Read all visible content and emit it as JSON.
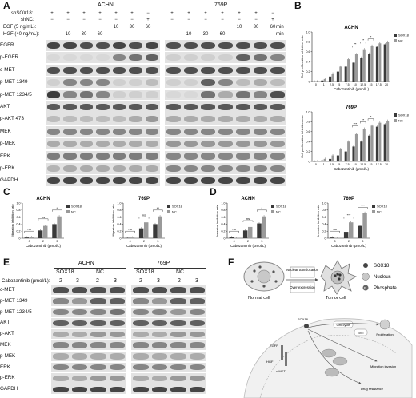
{
  "panelA": {
    "letter": "A",
    "cell_lines": [
      "ACHN",
      "769P"
    ],
    "treatments": [
      "shSOX18:",
      "shNC:",
      "EGF (5 ng/mL):",
      "HGF (40 ng/mL):"
    ],
    "unit": "min",
    "sign_plus": "+",
    "sign_minus": "−",
    "egf_times": [
      "10",
      "30",
      "60"
    ],
    "hgf_times": [
      "10",
      "30",
      "60"
    ],
    "rows": [
      "EGFR",
      "p-EGFR",
      "c-MET",
      "p-MET 1349",
      "p-MET 1234/5",
      "AKT",
      "p-AKT 473",
      "MEK",
      "p-MEK",
      "ERK",
      "p-ERK",
      "GAPDH"
    ]
  },
  "panelB": {
    "letter": "B",
    "ylabel": "Cell proliferation inhibition rate",
    "xlabel": "Cabozantinib (μmol/L)",
    "sig1": "**",
    "sig2": "*",
    "sig3": "***"
  },
  "panelC": {
    "letter": "C",
    "ylabel": "Migration inhibition rate",
    "xlabel": "Cabozantinib (μmol/L)",
    "ns": "ns",
    "sig1": "*",
    "sig2": "**"
  },
  "panelD": {
    "letter": "D",
    "ylabel": "Invasion inhibition rate",
    "xlabel": "Cabozantinib (μmol/L)",
    "ns": "ns",
    "sig1": "*",
    "sig2": "**",
    "sig3": "***"
  },
  "panelE": {
    "letter": "E",
    "cell_lines": [
      "ACHN",
      "769P"
    ],
    "groups": [
      "SOX18",
      "NC"
    ],
    "dose_label": "Cabozantinib (μmol/L):",
    "doses": [
      "2",
      "3"
    ],
    "rows": [
      "c-MET",
      "p-MET 1349",
      "p-MET 1234/5",
      "AKT",
      "p-AKT",
      "MEK",
      "p-MEK",
      "ERK",
      "p-ERK",
      "GAPDH"
    ]
  },
  "panelF": {
    "letter": "F",
    "normal": "Normal cell",
    "tumor": "Tumor cell",
    "arrow1": "Nuclear translocation",
    "arrow2": "Over-expression",
    "legend": [
      "SOX18",
      "Nucleus",
      "Phosphate"
    ],
    "legend_p": "P",
    "labels": [
      "Cell cycle",
      "EMT",
      "Proliferation",
      "Migration invasion",
      "Drug resistance",
      "SOX18",
      "EGFR",
      "HGF",
      "c-MET"
    ]
  },
  "chart_data": [
    {
      "type": "bar",
      "title": "ACHN",
      "xlabel": "Cabozantinib (μmol/L)",
      "ylabel": "Cell proliferation inhibition rate",
      "categories": [
        "0",
        "1",
        "2.5",
        "5",
        "7.5",
        "10",
        "12.5",
        "15",
        "17.5",
        "20"
      ],
      "ylim": [
        0,
        1.0
      ],
      "yticks": [
        "0",
        "0.2",
        "0.4",
        "0.6",
        "0.8",
        "1.0"
      ],
      "series": [
        {
          "name": "SOX18",
          "values": [
            0,
            0.02,
            0.1,
            0.2,
            0.3,
            0.38,
            0.48,
            0.56,
            0.7,
            0.75
          ],
          "color": "#3a3a3a"
        },
        {
          "name": "NC",
          "values": [
            0,
            0.05,
            0.16,
            0.3,
            0.45,
            0.55,
            0.65,
            0.72,
            0.77,
            0.8
          ],
          "color": "#9a9a9a"
        }
      ],
      "legend": "top-right"
    },
    {
      "type": "bar",
      "title": "769P",
      "xlabel": "Cabozantinib (μmol/L)",
      "ylabel": "Cell proliferation inhibition rate",
      "categories": [
        "0",
        "1",
        "2.5",
        "5",
        "7.5",
        "10",
        "12.5",
        "15",
        "17.5",
        "20"
      ],
      "ylim": [
        0,
        1.0
      ],
      "yticks": [
        "0",
        "0.2",
        "0.4",
        "0.6",
        "0.8",
        "1.0"
      ],
      "series": [
        {
          "name": "SOX18",
          "values": [
            0,
            0.02,
            0.05,
            0.12,
            0.2,
            0.3,
            0.4,
            0.52,
            0.7,
            0.75
          ],
          "color": "#3a3a3a"
        },
        {
          "name": "NC",
          "values": [
            0,
            0.05,
            0.12,
            0.25,
            0.4,
            0.55,
            0.66,
            0.72,
            0.78,
            0.82
          ],
          "color": "#9a9a9a"
        }
      ],
      "legend": "top-right"
    },
    {
      "type": "bar",
      "title": "ACHN",
      "xlabel": "Cabozantinib (μmol/L)",
      "ylabel": "Migration inhibition rate",
      "categories": [
        "0",
        "2",
        "3"
      ],
      "ylim": [
        0,
        1.0
      ],
      "yticks": [
        "0",
        "0.2",
        "0.4",
        "0.6",
        "0.8",
        "1.0"
      ],
      "series": [
        {
          "name": "SOX18",
          "values": [
            0.02,
            0.22,
            0.4
          ],
          "color": "#3a3a3a"
        },
        {
          "name": "NC",
          "values": [
            0.03,
            0.35,
            0.62
          ],
          "color": "#9a9a9a"
        }
      ],
      "legend": "top-right"
    },
    {
      "type": "bar",
      "title": "769P",
      "xlabel": "Cabozantinib (μmol/L)",
      "ylabel": "Migration inhibition rate",
      "categories": [
        "0",
        "2",
        "3"
      ],
      "ylim": [
        0,
        1.0
      ],
      "yticks": [
        "0",
        "0.2",
        "0.4",
        "0.6",
        "0.8",
        "1.0"
      ],
      "series": [
        {
          "name": "SOX18",
          "values": [
            0.01,
            0.28,
            0.4
          ],
          "color": "#3a3a3a"
        },
        {
          "name": "NC",
          "values": [
            0.02,
            0.45,
            0.62
          ],
          "color": "#9a9a9a"
        }
      ],
      "legend": "top-right"
    },
    {
      "type": "bar",
      "title": "ACHN",
      "xlabel": "Cabozantinib (μmol/L)",
      "ylabel": "Invasion inhibition rate",
      "categories": [
        "0",
        "2",
        "3"
      ],
      "ylim": [
        0,
        1.0
      ],
      "yticks": [
        "0",
        "0.2",
        "0.4",
        "0.6",
        "0.8",
        "1.0"
      ],
      "series": [
        {
          "name": "SOX18",
          "values": [
            0.03,
            0.22,
            0.42
          ],
          "color": "#3a3a3a"
        },
        {
          "name": "NC",
          "values": [
            0.01,
            0.32,
            0.62
          ],
          "color": "#9a9a9a"
        }
      ],
      "legend": "top-right"
    },
    {
      "type": "bar",
      "title": "769P",
      "xlabel": "Cabozantinib (μmol/L)",
      "ylabel": "Invasion inhibition rate",
      "categories": [
        "0",
        "2",
        "3"
      ],
      "ylim": [
        0,
        1.0
      ],
      "yticks": [
        "0",
        "0.2",
        "0.4",
        "0.6",
        "0.8",
        "1.0"
      ],
      "series": [
        {
          "name": "SOX18",
          "values": [
            0.02,
            0.18,
            0.35
          ],
          "color": "#3a3a3a"
        },
        {
          "name": "NC",
          "values": [
            0.01,
            0.45,
            0.72
          ],
          "color": "#9a9a9a"
        }
      ],
      "legend": "top-right"
    }
  ]
}
